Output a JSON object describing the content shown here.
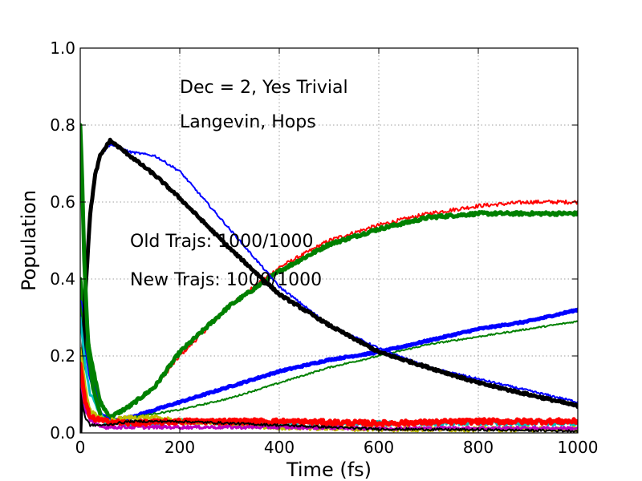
{
  "chart_data": {
    "type": "line",
    "xlabel": "Time (fs)",
    "ylabel": "Population",
    "xlim": [
      0,
      1000
    ],
    "ylim": [
      0,
      1.0
    ],
    "xticks": [
      "0",
      "200",
      "400",
      "600",
      "800",
      "1000"
    ],
    "yticks": [
      "0.0",
      "0.2",
      "0.4",
      "0.6",
      "0.8",
      "1.0"
    ],
    "grid": true,
    "annotations": [
      {
        "text": "Dec = 2, Yes Trivial",
        "x": 200,
        "y": 0.9
      },
      {
        "text": "Langevin, Hops",
        "x": 200,
        "y": 0.81
      },
      {
        "text": "Old Trajs: 1000/1000",
        "x": 100,
        "y": 0.5
      },
      {
        "text": "New Trajs: 1000/1000",
        "x": 100,
        "y": 0.4
      }
    ],
    "series": [
      {
        "color": "#ff0000",
        "width": 2,
        "noise": 0.005,
        "x": [
          0,
          10,
          20,
          40,
          60,
          100,
          150,
          200,
          300,
          400,
          500,
          600,
          700,
          800,
          900,
          1000
        ],
        "y": [
          0.4,
          0.29,
          0.2,
          0.08,
          0.04,
          0.07,
          0.12,
          0.2,
          0.33,
          0.43,
          0.5,
          0.54,
          0.57,
          0.59,
          0.6,
          0.6
        ]
      },
      {
        "color": "#008000",
        "width": 5,
        "noise": 0.004,
        "x": [
          0,
          10,
          20,
          40,
          60,
          100,
          150,
          200,
          300,
          400,
          500,
          600,
          700,
          800,
          900,
          1000
        ],
        "y": [
          0.4,
          0.29,
          0.2,
          0.08,
          0.04,
          0.07,
          0.12,
          0.21,
          0.33,
          0.42,
          0.49,
          0.53,
          0.56,
          0.57,
          0.57,
          0.57
        ]
      },
      {
        "color": "#0000ff",
        "width": 5,
        "noise": 0.002,
        "x": [
          0,
          10,
          20,
          40,
          60,
          100,
          150,
          200,
          300,
          400,
          500,
          600,
          700,
          800,
          900,
          1000
        ],
        "y": [
          0.34,
          0.24,
          0.15,
          0.05,
          0.03,
          0.04,
          0.06,
          0.08,
          0.12,
          0.16,
          0.19,
          0.21,
          0.24,
          0.27,
          0.29,
          0.32
        ]
      },
      {
        "color": "#008000",
        "width": 2,
        "noise": 0.002,
        "x": [
          0,
          10,
          20,
          40,
          60,
          100,
          150,
          200,
          300,
          400,
          500,
          600,
          700,
          800,
          900,
          1000
        ],
        "y": [
          0.34,
          0.24,
          0.15,
          0.05,
          0.03,
          0.04,
          0.05,
          0.06,
          0.09,
          0.13,
          0.17,
          0.2,
          0.23,
          0.25,
          0.27,
          0.29
        ]
      },
      {
        "color": "#0000ff",
        "width": 2,
        "noise": 0.003,
        "x": [
          0,
          10,
          20,
          30,
          40,
          60,
          80,
          100,
          150,
          200,
          300,
          400,
          500,
          600,
          700,
          800,
          900,
          1000
        ],
        "y": [
          0.0,
          0.35,
          0.55,
          0.66,
          0.72,
          0.75,
          0.74,
          0.73,
          0.72,
          0.68,
          0.53,
          0.38,
          0.28,
          0.22,
          0.17,
          0.14,
          0.11,
          0.08
        ]
      },
      {
        "color": "#000000",
        "width": 5,
        "noise": 0.003,
        "x": [
          0,
          10,
          20,
          30,
          40,
          60,
          80,
          100,
          150,
          200,
          300,
          400,
          500,
          600,
          700,
          800,
          900,
          1000
        ],
        "y": [
          0.0,
          0.36,
          0.57,
          0.67,
          0.72,
          0.76,
          0.74,
          0.72,
          0.67,
          0.61,
          0.48,
          0.36,
          0.28,
          0.21,
          0.17,
          0.13,
          0.1,
          0.07
        ]
      },
      {
        "color": "#00bfbf",
        "width": 3,
        "noise": 0.006,
        "x": [
          0,
          10,
          20,
          50,
          100,
          200,
          400,
          600,
          800,
          1000
        ],
        "y": [
          0.3,
          0.18,
          0.1,
          0.03,
          0.025,
          0.03,
          0.025,
          0.025,
          0.025,
          0.025
        ]
      },
      {
        "color": "#bfbf00",
        "width": 3,
        "noise": 0.006,
        "x": [
          0,
          10,
          20,
          50,
          100,
          150,
          200,
          300,
          400,
          600,
          800,
          1000
        ],
        "y": [
          0.22,
          0.12,
          0.06,
          0.03,
          0.04,
          0.04,
          0.03,
          0.02,
          0.015,
          0.01,
          0.01,
          0.01
        ]
      },
      {
        "color": "#bf00bf",
        "width": 3,
        "noise": 0.004,
        "x": [
          0,
          10,
          20,
          50,
          100,
          200,
          400,
          600,
          800,
          1000
        ],
        "y": [
          0.15,
          0.06,
          0.03,
          0.015,
          0.015,
          0.015,
          0.015,
          0.012,
          0.012,
          0.012
        ]
      },
      {
        "color": "#ff0000",
        "width": 5,
        "noise": 0.006,
        "x": [
          0,
          10,
          20,
          50,
          100,
          200,
          400,
          600,
          800,
          1000
        ],
        "y": [
          0.18,
          0.08,
          0.04,
          0.03,
          0.025,
          0.03,
          0.03,
          0.025,
          0.03,
          0.03
        ]
      },
      {
        "color": "#000000",
        "width": 2,
        "noise": 0.003,
        "x": [
          0,
          10,
          20,
          50,
          100,
          200,
          300,
          400,
          500,
          600,
          800,
          1000
        ],
        "y": [
          0.1,
          0.04,
          0.02,
          0.02,
          0.03,
          0.03,
          0.025,
          0.02,
          0.015,
          0.01,
          0.008,
          0.005
        ]
      },
      {
        "color": "#008000",
        "width": 5,
        "noise": 0.0,
        "x": [
          0,
          3,
          8,
          15,
          25,
          40
        ],
        "y": [
          0.8,
          0.7,
          0.45,
          0.25,
          0.12,
          0.05
        ]
      }
    ]
  }
}
